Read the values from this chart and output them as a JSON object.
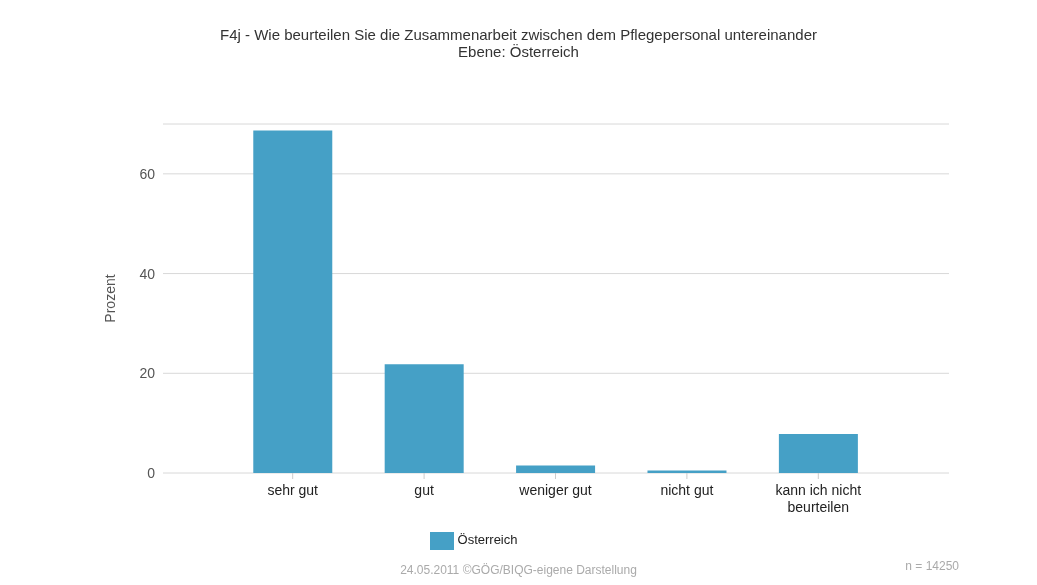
{
  "chart_data": {
    "type": "bar",
    "title": "F4j - Wie beurteilen Sie die Zusammenarbeit zwischen dem Pflegepersonal untereinander",
    "subtitle": "Ebene: Österreich",
    "ylabel": "Prozent",
    "categories": [
      "sehr gut",
      "gut",
      "weniger gut",
      "nicht gut",
      "kann ich nicht beurteilen"
    ],
    "series": [
      {
        "name": "Österreich",
        "color": "#45a0c6",
        "values": [
          68.7,
          21.8,
          1.5,
          0.5,
          7.8
        ]
      }
    ],
    "ylim": [
      0,
      70
    ],
    "yticks": [
      0,
      20,
      40,
      60
    ],
    "grid": "y",
    "legend": "bottom",
    "annotations": [
      "24.05.2011 ©GÖG/BIQG-eigene Darstellung",
      "n = 14250"
    ]
  }
}
